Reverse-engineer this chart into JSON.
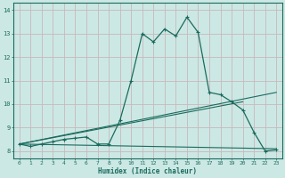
{
  "xlabel": "Humidex (Indice chaleur)",
  "bg_color": "#cce8e4",
  "line_color": "#1a6b5e",
  "grid_color": "#c8b8bc",
  "xlim": [
    -0.5,
    23.5
  ],
  "ylim": [
    7.7,
    14.3
  ],
  "xticks": [
    0,
    1,
    2,
    3,
    4,
    5,
    6,
    7,
    8,
    9,
    10,
    11,
    12,
    13,
    14,
    15,
    16,
    17,
    18,
    19,
    20,
    21,
    22,
    23
  ],
  "yticks": [
    8,
    9,
    10,
    11,
    12,
    13,
    14
  ],
  "series": {
    "line1": {
      "x": [
        0,
        1,
        2,
        3,
        4,
        5,
        6,
        7,
        8,
        9,
        10,
        11,
        12,
        13,
        14,
        15,
        16,
        17,
        18,
        19,
        20,
        21,
        22,
        23
      ],
      "y": [
        8.3,
        8.2,
        8.3,
        8.4,
        8.5,
        8.55,
        8.6,
        8.3,
        8.3,
        9.3,
        11.0,
        13.0,
        12.65,
        13.2,
        12.9,
        13.7,
        13.05,
        10.5,
        10.4,
        10.1,
        9.75,
        8.8,
        8.0,
        8.05
      ]
    },
    "line2": {
      "x": [
        0,
        23
      ],
      "y": [
        8.3,
        10.5
      ]
    },
    "line3": {
      "x": [
        0,
        20
      ],
      "y": [
        8.3,
        10.1
      ]
    },
    "line4": {
      "x": [
        0,
        23
      ],
      "y": [
        8.3,
        8.1
      ]
    }
  }
}
